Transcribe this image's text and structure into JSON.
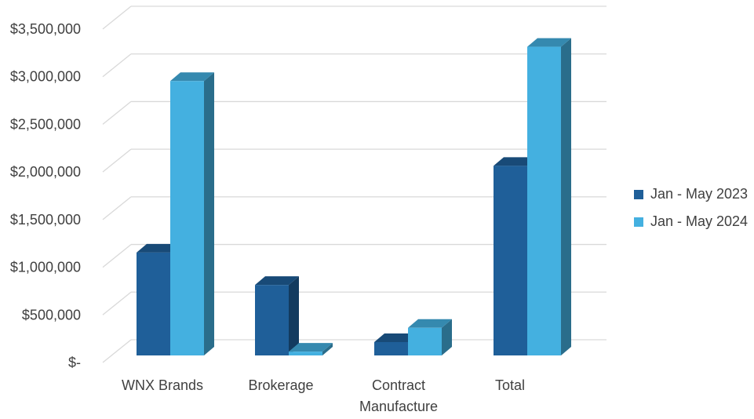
{
  "chart_data": {
    "type": "bar",
    "style": "3d-clustered-column",
    "categories": [
      "WNX Brands",
      "Brokerage",
      "Contract Manufacture",
      "Total"
    ],
    "series": [
      {
        "name": "Jan - May 2023",
        "color": "#1f5f99",
        "values": [
          1080000,
          740000,
          140000,
          1990000
        ]
      },
      {
        "name": "Jan - May 2024",
        "color": "#44b0e0",
        "values": [
          2880000,
          40000,
          290000,
          3240000
        ]
      }
    ],
    "y_ticks": [
      0,
      500000,
      1000000,
      1500000,
      2000000,
      2500000,
      3000000,
      3500000
    ],
    "y_tick_labels": [
      "$-",
      "$500,000",
      "$1,000,000",
      "$1,500,000",
      "$2,000,000",
      "$2,500,000",
      "$3,000,000",
      "$3,500,000"
    ],
    "ylim": [
      0,
      3500000
    ],
    "grid": true,
    "legend_position": "right",
    "title": "",
    "xlabel": "",
    "ylabel": ""
  }
}
